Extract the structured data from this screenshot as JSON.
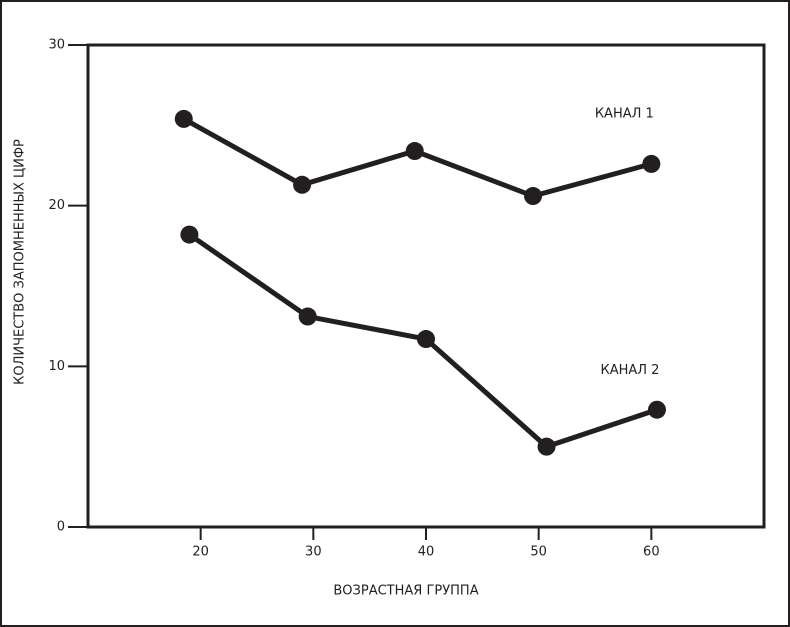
{
  "chart_data": {
    "type": "line",
    "x_label": "ВОЗРАСТНАЯ ГРУППА",
    "y_label": "КОЛИЧЕСТВО ЗАПОМНЕННЫХ ЦИФР",
    "xlim": [
      10,
      70
    ],
    "xticks": [
      20,
      30,
      40,
      50,
      60
    ],
    "ylim": [
      0,
      30
    ],
    "yticks": [
      0,
      10,
      20,
      30
    ],
    "series": [
      {
        "name": "КАНАЛ 1",
        "color": "#231f20",
        "x": [
          18.5,
          29,
          39,
          49.5,
          60
        ],
        "values": [
          25.4,
          21.3,
          23.4,
          20.6,
          22.6
        ]
      },
      {
        "name": "КАНАЛ 2",
        "color": "#231f20",
        "x": [
          19,
          29.5,
          40,
          50.7,
          60.5
        ],
        "values": [
          18.2,
          13.1,
          11.7,
          5,
          7.3
        ]
      }
    ]
  }
}
